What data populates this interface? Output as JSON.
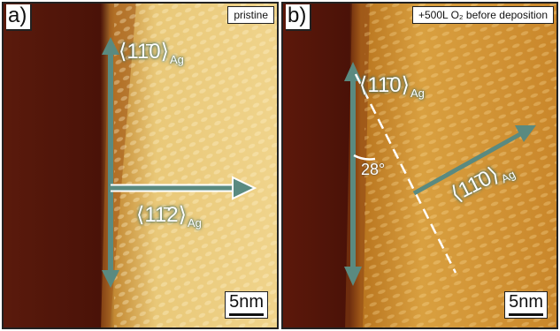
{
  "panel_a": {
    "label": "a)",
    "condition": "pristine",
    "scale_bar": "5nm",
    "direction_vertical": "⟨11̄0⟩",
    "direction_vertical_sub": "Ag",
    "direction_horizontal": "⟨11̄2⟩",
    "direction_horizontal_sub": "Ag"
  },
  "panel_b": {
    "label": "b)",
    "condition": "+500L O₂ before deposition",
    "scale_bar": "5nm",
    "direction_vertical": "⟨11̄0⟩",
    "direction_vertical_sub": "Ag",
    "direction_diagonal": "⟨11̄0⟩",
    "direction_diagonal_sub": "Ag",
    "angle": "28°"
  },
  "colors": {
    "arrow": "#5a8a80",
    "substrate_dark": "#4a1208",
    "surface_light": "#e9c878",
    "surface_mid": "#c08a30"
  }
}
